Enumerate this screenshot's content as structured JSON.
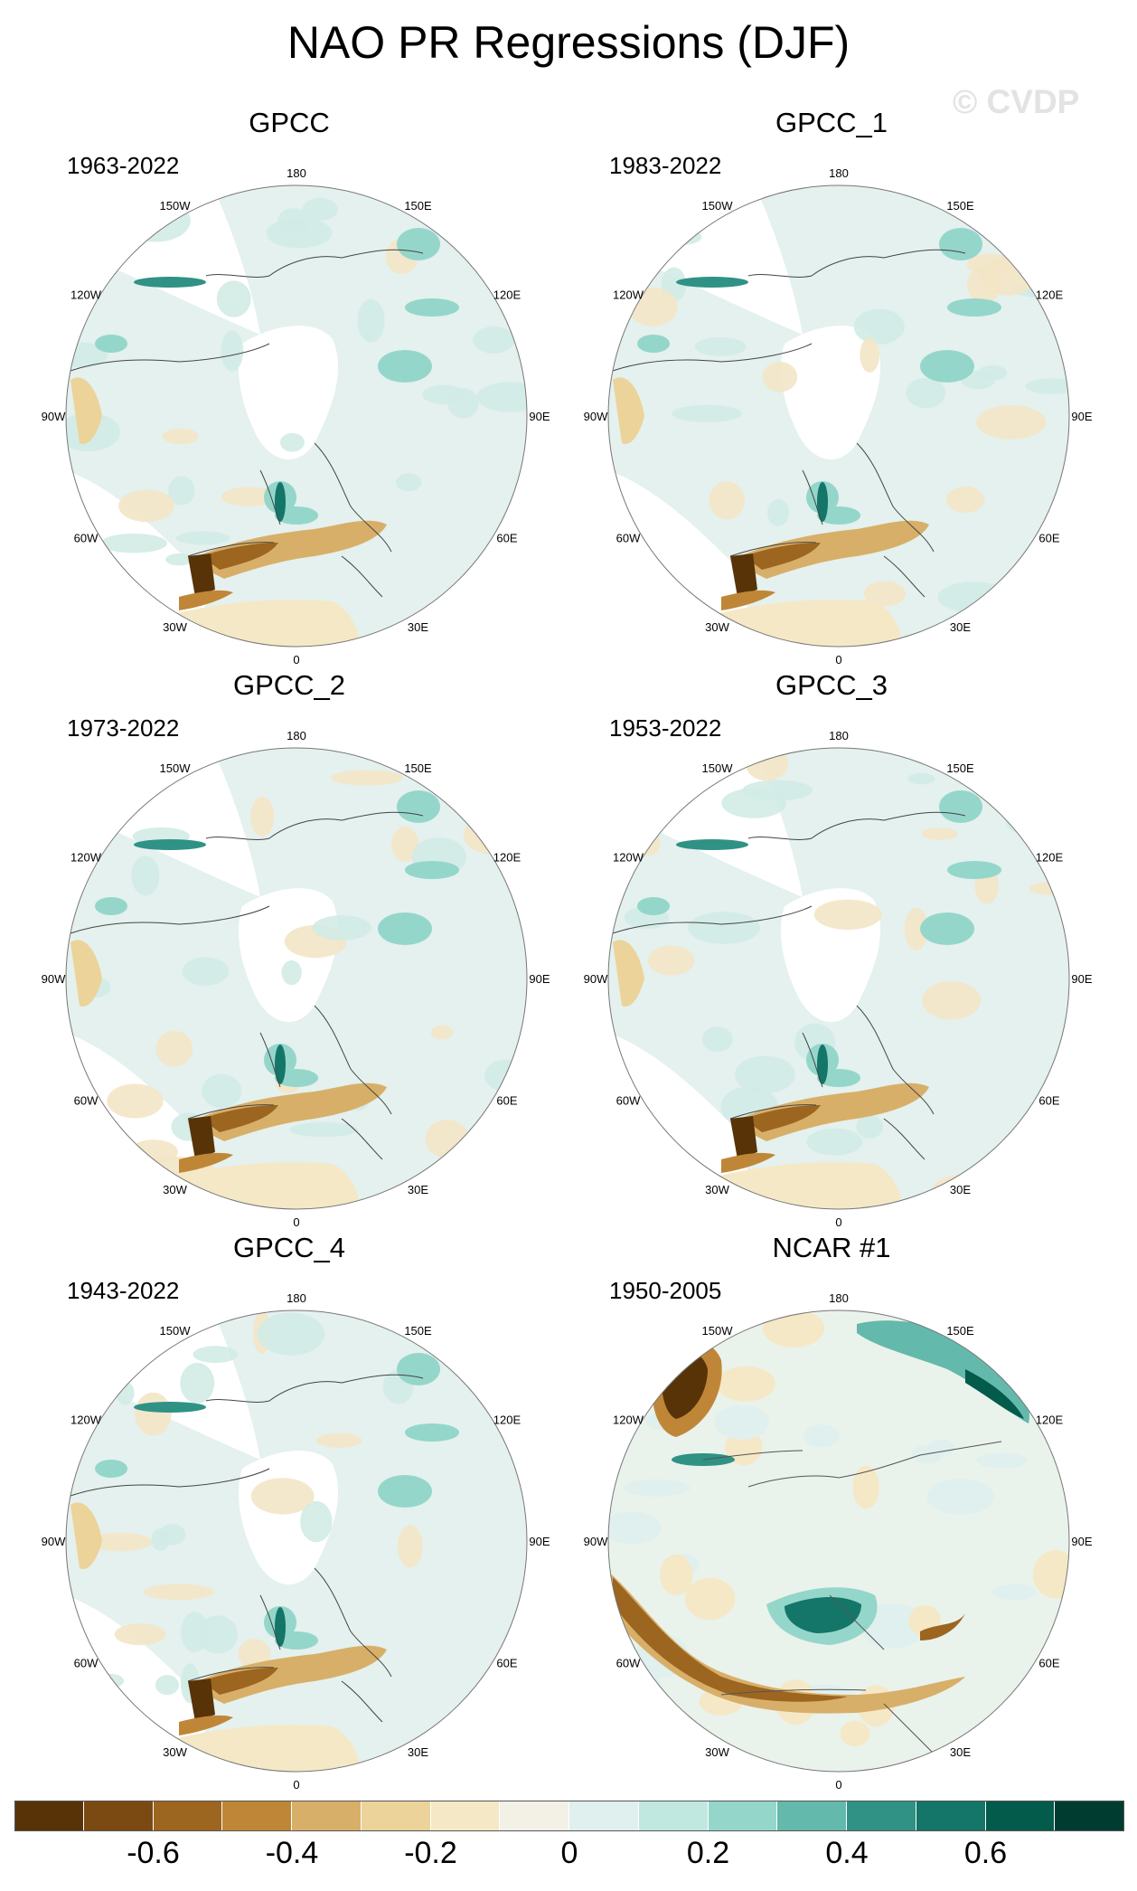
{
  "figure": {
    "title": "NAO PR Regressions (DJF)",
    "watermark": "© CVDP"
  },
  "panels": [
    {
      "title": "GPCC",
      "period": "1963-2022"
    },
    {
      "title": "GPCC_1",
      "period": "1983-2022"
    },
    {
      "title": "GPCC_2",
      "period": "1973-2022"
    },
    {
      "title": "GPCC_3",
      "period": "1953-2022"
    },
    {
      "title": "GPCC_4",
      "period": "1943-2022"
    },
    {
      "title": "NCAR #1",
      "period": "1950-2005"
    }
  ],
  "longitude_labels": [
    "180",
    "150E",
    "120E",
    "90E",
    "60E",
    "30E",
    "0",
    "30W",
    "60W",
    "90W",
    "120W",
    "150W"
  ],
  "colorbar": {
    "colors": [
      "#583308",
      "#7a4a12",
      "#9c6520",
      "#c08638",
      "#d8af69",
      "#ecd39a",
      "#f5e8c6",
      "#f3f1e6",
      "#dff0ee",
      "#c0e8e1",
      "#95d6cb",
      "#63b9ab",
      "#2f9285",
      "#147668",
      "#035b4b",
      "#003c30"
    ],
    "tick_labels": [
      "-0.6",
      "-0.4",
      "-0.2",
      "0",
      "0.2",
      "0.4",
      "0.6"
    ]
  }
}
